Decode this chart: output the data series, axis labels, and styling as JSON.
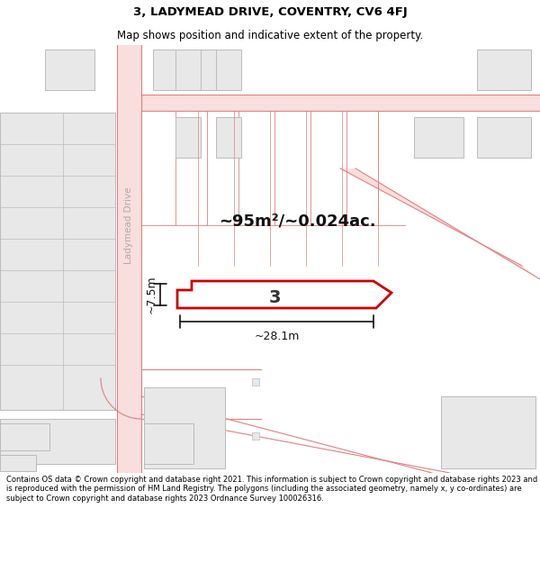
{
  "title_line1": "3, LADYMEAD DRIVE, COVENTRY, CV6 4FJ",
  "title_line2": "Map shows position and indicative extent of the property.",
  "footer_text": "Contains OS data © Crown copyright and database right 2021. This information is subject to Crown copyright and database rights 2023 and is reproduced with the permission of HM Land Registry. The polygons (including the associated geometry, namely x, y co-ordinates) are subject to Crown copyright and database rights 2023 Ordnance Survey 100026316.",
  "bg_color": "#ffffff",
  "road_fill": "#f9dede",
  "road_line": "#e08080",
  "building_fill": "#e8e8e8",
  "building_edge": "#bbbbbb",
  "parcel_color": "#cc0000",
  "measure_color": "#111111",
  "area_label": "~95m²/~0.024ac.",
  "dim_width": "~28.1m",
  "dim_height": "~7.5m",
  "parcel_label": "3",
  "road_label_color": "#aaaaaa"
}
